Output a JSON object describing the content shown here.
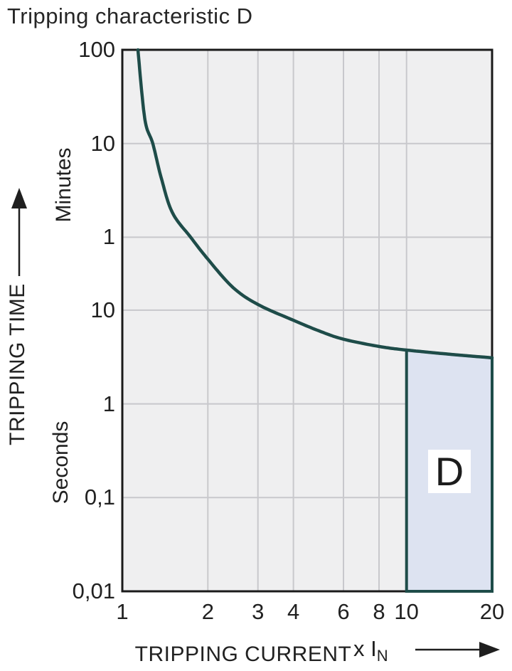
{
  "title": "Tripping characteristic D",
  "axis": {
    "y_title": "TRIPPING TIME",
    "y_unit_minutes": "Minutes",
    "y_unit_seconds": "Seconds",
    "x_title": "TRIPPING CURRENT",
    "x_unit_prefix": "x I",
    "x_unit_sub": "N"
  },
  "chart_data": {
    "type": "line",
    "title": "Tripping characteristic D",
    "xlabel": "TRIPPING CURRENT",
    "x_unit": "x IN (multiple of rated current)",
    "ylabel": "TRIPPING TIME",
    "x_scale": "log",
    "x_range": [
      1,
      20
    ],
    "x_ticks": [
      "1",
      "2",
      "3",
      "4",
      "6",
      "8",
      "10",
      "20"
    ],
    "x_tick_values": [
      1,
      2,
      3,
      4,
      6,
      8,
      10,
      20
    ],
    "y_scale": "log",
    "y_range_seconds": [
      0.01,
      6000
    ],
    "y_ticks": [
      {
        "label": "100",
        "seconds": 6000,
        "unit": "minutes"
      },
      {
        "label": "10",
        "seconds": 600,
        "unit": "minutes"
      },
      {
        "label": "1",
        "seconds": 60,
        "unit": "minutes"
      },
      {
        "label": "10",
        "seconds": 10,
        "unit": "seconds"
      },
      {
        "label": "1",
        "seconds": 1,
        "unit": "seconds"
      },
      {
        "label": "0,1",
        "seconds": 0.1,
        "unit": "seconds"
      },
      {
        "label": "0,01",
        "seconds": 0.01,
        "unit": "seconds"
      }
    ],
    "grid": true,
    "legend": "none",
    "series": [
      {
        "name": "tripping-curve",
        "points_multiple_vs_seconds": [
          [
            1.135,
            6000
          ],
          [
            1.2,
            1100
          ],
          [
            1.28,
            600
          ],
          [
            1.37,
            260
          ],
          [
            1.5,
            110
          ],
          [
            1.74,
            60
          ],
          [
            2.0,
            35
          ],
          [
            2.45,
            17.5
          ],
          [
            3.0,
            11.5
          ],
          [
            4.0,
            7.8
          ],
          [
            5.0,
            5.9
          ],
          [
            6.0,
            4.9
          ],
          [
            8.0,
            4.1
          ],
          [
            10.0,
            3.75
          ],
          [
            14.0,
            3.4
          ],
          [
            20.0,
            3.1
          ]
        ]
      }
    ],
    "region": {
      "label": "D",
      "x_from": 10,
      "x_to": 20,
      "time_bottom_seconds": 0.01,
      "bounded_above_by": "tripping-curve"
    }
  },
  "colors": {
    "curve": "#1e4c49",
    "region_fill": "#dde3f1",
    "region_border": "#1e4c49",
    "plot_bg": "#efeff0",
    "grid": "#c8c8cc",
    "plot_border": "#1a1a1a",
    "arrow": "#1f1f1f",
    "text": "#212121",
    "d_label_bg": "#ffffff",
    "page_bg": "#ffffff"
  }
}
